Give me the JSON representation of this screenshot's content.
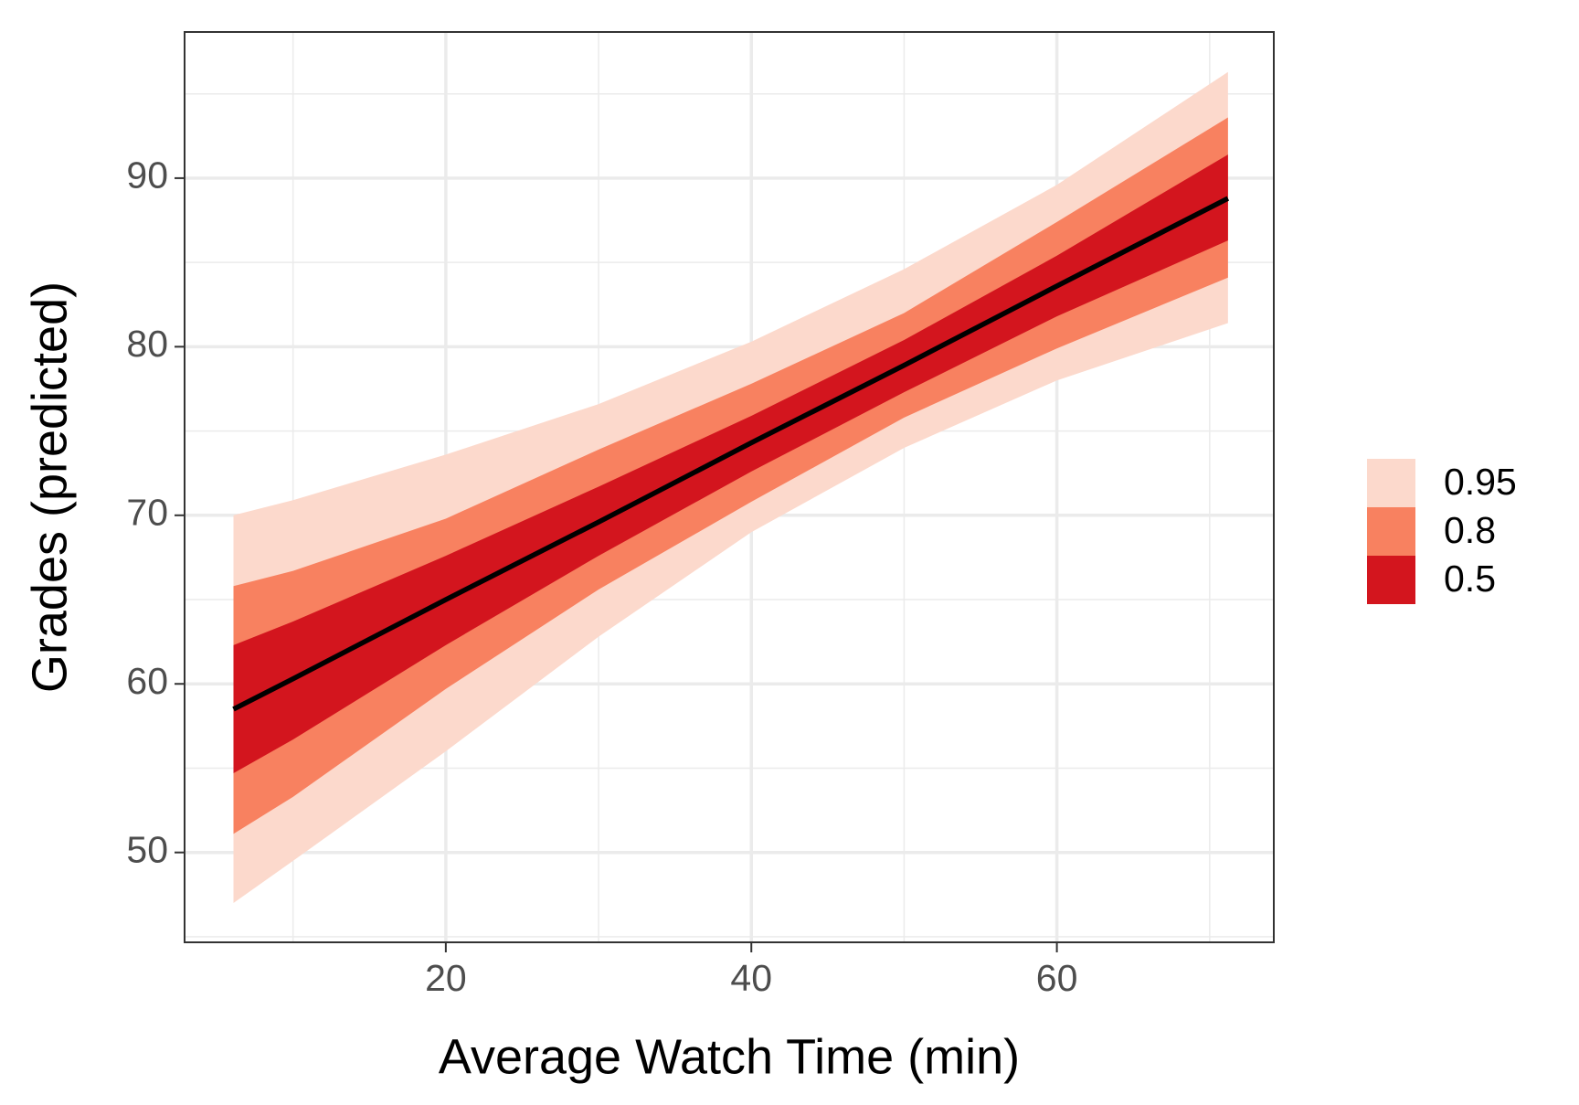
{
  "chart_data": {
    "type": "ribbon",
    "xlabel": "Average Watch Time (min)",
    "ylabel": "Grades (predicted)",
    "x": [
      6.1,
      10,
      20,
      30,
      40,
      50,
      60,
      71.2
    ],
    "series": [
      {
        "name": "0.95",
        "color": "#fcd9cc",
        "upper": [
          70.0,
          70.9,
          73.6,
          76.6,
          80.3,
          84.6,
          89.6,
          96.3
        ],
        "lower": [
          47.0,
          49.5,
          56.0,
          62.8,
          69.0,
          74.0,
          78.0,
          81.4
        ]
      },
      {
        "name": "0.8",
        "color": "#f88160",
        "upper": [
          65.8,
          66.7,
          69.8,
          73.9,
          77.8,
          82.0,
          87.4,
          93.6
        ],
        "lower": [
          51.1,
          53.3,
          59.7,
          65.6,
          70.8,
          75.8,
          79.9,
          84.1
        ]
      },
      {
        "name": "0.5",
        "color": "#d3151e",
        "upper": [
          62.3,
          63.7,
          67.6,
          71.7,
          75.9,
          80.4,
          85.4,
          91.4
        ],
        "lower": [
          54.7,
          56.7,
          62.3,
          67.6,
          72.6,
          77.3,
          81.8,
          86.3
        ]
      }
    ],
    "fit": {
      "color": "#000000",
      "values": [
        58.5,
        60.3,
        65.0,
        69.6,
        74.3,
        78.9,
        83.6,
        88.8
      ]
    },
    "xlim": [
      2.9,
      74.2
    ],
    "ylim": [
      44.67,
      98.67
    ],
    "xticks": [
      20,
      40,
      60
    ],
    "yticks": [
      50,
      60,
      70,
      80,
      90
    ],
    "xminor": [
      10,
      30,
      50,
      70
    ],
    "yminor": [
      45,
      55,
      65,
      75,
      85,
      95
    ],
    "grid": true
  }
}
